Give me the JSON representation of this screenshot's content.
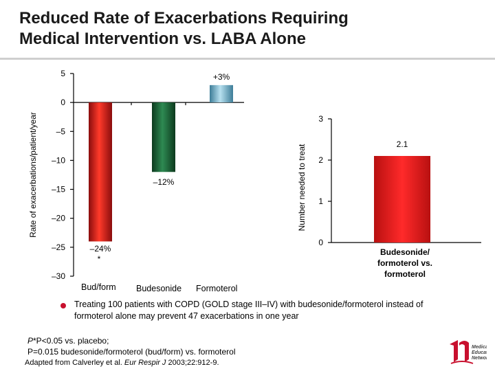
{
  "slide": {
    "title_line1": "Reduced Rate of Exacerbations Requiring",
    "title_line2": "Medical Intervention vs. LABA Alone",
    "bullet": "Treating 100 patients with COPD (GOLD stage III–IV) with budesonide/formoterol instead of formoterol alone may prevent 47 exacerbations in one year",
    "footnote_1": "*P<0.05 vs. placebo;",
    "footnote_2": "P=0.015 budesonide/formoterol (bud/form) vs. formoterol",
    "footnote_3_prefix": "Adapted from Calverley et al. ",
    "footnote_3_journal": "Eur Respir J",
    "footnote_3_suffix": " 2003;22:912-9.",
    "logo_lines": [
      "Medical",
      "Education",
      "Network"
    ]
  },
  "chart_data": [
    {
      "type": "bar",
      "categories": [
        "Bud/form",
        "Budesonide",
        "Formoterol"
      ],
      "values": [
        -24,
        -12,
        3
      ],
      "data_labels": [
        "–24%",
        "–12%",
        "+3%"
      ],
      "annotations": [
        "*"
      ],
      "ylabel": "Rate of exacerbations/patient/year",
      "ylim": [
        -30,
        5
      ],
      "yticks": [
        5,
        0,
        -5,
        -10,
        -15,
        -20,
        -25,
        -30
      ],
      "ytick_labels": [
        "5",
        "0",
        "–5",
        "–10",
        "–15",
        "–20",
        "–25",
        "–30"
      ],
      "colors": [
        "#d81e1e",
        "#1e6b3a",
        "#7fb8cf"
      ],
      "grid": false,
      "legend": "none"
    },
    {
      "type": "bar",
      "categories": [
        "Budesonide/ formoterol vs. formoterol"
      ],
      "values": [
        2.1
      ],
      "data_labels": [
        "2.1"
      ],
      "ylabel": "Number needed to treat",
      "ylim": [
        0,
        3
      ],
      "yticks": [
        0,
        1,
        2,
        3
      ],
      "ytick_labels": [
        "0",
        "1",
        "2",
        "3"
      ],
      "colors": [
        "#e02020"
      ],
      "grid": false,
      "legend": "none"
    }
  ]
}
